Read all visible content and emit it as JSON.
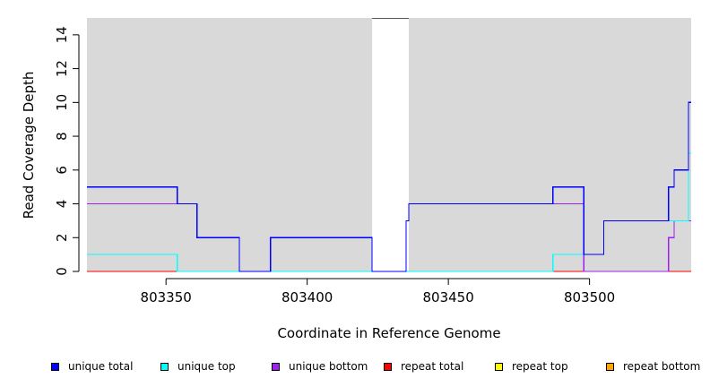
{
  "chart_data": {
    "type": "line",
    "xlabel": "Coordinate in Reference Genome",
    "ylabel": "Read Coverage Depth",
    "xlim": [
      803322,
      803536
    ],
    "ylim": [
      0,
      15
    ],
    "x_ticks": [
      803350,
      803400,
      803450,
      803500
    ],
    "y_ticks": [
      0,
      2,
      4,
      6,
      8,
      10,
      12,
      14
    ],
    "background_color": "#d9d9d9",
    "uncovered_region": [
      803423,
      803436
    ],
    "series": [
      {
        "name": "unique total",
        "color": "#0000ff",
        "steps": [
          [
            803322,
            5
          ],
          [
            803354,
            4
          ],
          [
            803361,
            2
          ],
          [
            803376,
            0
          ],
          [
            803387,
            2
          ],
          [
            803423,
            0
          ],
          [
            803435,
            3
          ],
          [
            803436,
            4
          ],
          [
            803487,
            5
          ],
          [
            803498,
            1
          ],
          [
            803505,
            3
          ],
          [
            803528,
            5
          ],
          [
            803530,
            6
          ],
          [
            803535,
            10
          ]
        ]
      },
      {
        "name": "unique top",
        "color": "#00ffff",
        "steps": [
          [
            803322,
            1
          ],
          [
            803354,
            0
          ],
          [
            803487,
            1
          ],
          [
            803498,
            1
          ],
          [
            803505,
            3
          ],
          [
            803528,
            3
          ],
          [
            803530,
            3
          ],
          [
            803535,
            7
          ]
        ]
      },
      {
        "name": "unique bottom",
        "color": "#a020f0",
        "steps": [
          [
            803322,
            4
          ],
          [
            803354,
            4
          ],
          [
            803361,
            2
          ],
          [
            803376,
            0
          ],
          [
            803387,
            2
          ],
          [
            803423,
            0
          ],
          [
            803435,
            3
          ],
          [
            803436,
            4
          ],
          [
            803498,
            0
          ],
          [
            803528,
            2
          ],
          [
            803530,
            3
          ],
          [
            803535,
            3
          ]
        ]
      },
      {
        "name": "repeat total",
        "color": "#ff0000",
        "steps": [
          [
            803322,
            0
          ],
          [
            803536,
            0
          ]
        ]
      },
      {
        "name": "repeat top",
        "color": "#ffff00",
        "steps": [
          [
            803322,
            0
          ],
          [
            803536,
            0
          ]
        ]
      },
      {
        "name": "repeat bottom",
        "color": "#ffa500",
        "steps": [
          [
            803322,
            0
          ],
          [
            803536,
            0
          ]
        ]
      }
    ]
  }
}
